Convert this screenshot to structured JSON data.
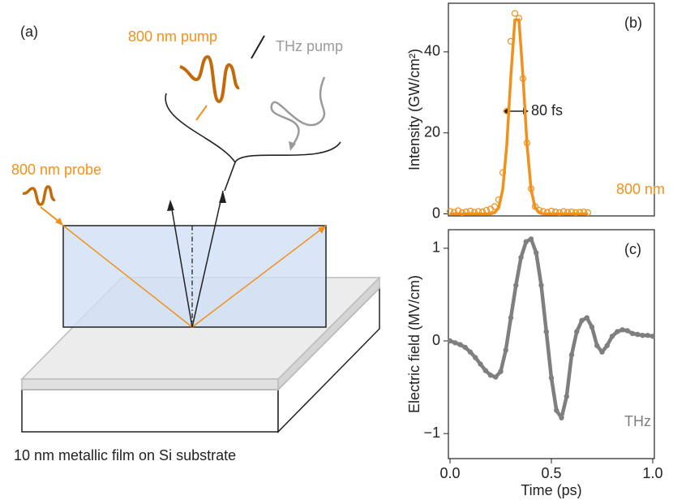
{
  "diagram": {
    "panel_label": "(a)",
    "pump_label": "800 nm pump",
    "thz_label": "THz pump",
    "probe_label": "800 nm probe",
    "caption": "10 nm metallic film on Si substrate"
  },
  "chart_data": [
    {
      "type": "line",
      "panel_label": "(b)",
      "ylabel": "Intensity (GW/cm²)",
      "annotations": [
        "800 nm",
        "80 fs"
      ],
      "x": [
        0.0,
        0.02,
        0.04,
        0.06,
        0.08,
        0.1,
        0.12,
        0.14,
        0.16,
        0.18,
        0.2,
        0.22,
        0.24,
        0.26,
        0.28,
        0.3,
        0.32,
        0.34,
        0.36,
        0.38,
        0.4,
        0.42,
        0.44,
        0.46,
        0.48,
        0.5,
        0.52,
        0.54,
        0.56,
        0.58,
        0.6,
        0.62,
        0.64,
        0.66,
        0.68
      ],
      "series": [
        {
          "color": "#f39019",
          "marker": "open-circle",
          "values": [
            0.6,
            0.4,
            0.8,
            0.3,
            0.5,
            0.7,
            0.4,
            0.6,
            0.5,
            0.9,
            1.2,
            1.8,
            3.5,
            10.2,
            25.4,
            42.6,
            49.5,
            48.3,
            33.4,
            17.5,
            6.2,
            1.8,
            0.9,
            0.6,
            0.4,
            0.7,
            0.5,
            0.3,
            0.6,
            0.4,
            0.5,
            0.3,
            0.4,
            0.5,
            0.3
          ]
        },
        {
          "color": "#f39019",
          "marker": "none",
          "values": [
            0,
            0,
            0,
            0,
            0,
            0,
            0,
            0,
            0,
            0,
            0,
            0.3,
            1.5,
            6.0,
            17.0,
            33.9,
            47.9,
            47.9,
            33.9,
            17.0,
            6.0,
            1.5,
            0.3,
            0,
            0,
            0,
            0,
            0,
            0,
            0,
            0,
            0,
            0,
            0,
            0
          ]
        }
      ],
      "xlim": [
        0,
        1
      ],
      "ylim": [
        -0.5,
        52
      ],
      "yticks": [
        0,
        20,
        40
      ]
    },
    {
      "type": "line",
      "panel_label": "(c)",
      "ylabel": "Electric field (MV/cm)",
      "xlabel": "Time (ps)",
      "annotations": [
        "THz"
      ],
      "x": [
        0,
        0.025,
        0.05,
        0.075,
        0.1,
        0.125,
        0.15,
        0.175,
        0.2,
        0.225,
        0.25,
        0.275,
        0.3,
        0.325,
        0.35,
        0.375,
        0.4,
        0.425,
        0.45,
        0.475,
        0.5,
        0.525,
        0.55,
        0.575,
        0.6,
        0.625,
        0.65,
        0.675,
        0.7,
        0.725,
        0.75,
        0.775,
        0.8,
        0.825,
        0.85,
        0.875,
        0.9,
        0.925,
        0.95,
        0.975,
        1.0
      ],
      "series": [
        {
          "color": "#7f7f7f",
          "marker": "dot",
          "values": [
            0.0,
            -0.02,
            -0.04,
            -0.07,
            -0.12,
            -0.18,
            -0.25,
            -0.32,
            -0.37,
            -0.39,
            -0.33,
            -0.1,
            0.25,
            0.6,
            0.9,
            1.07,
            1.1,
            0.95,
            0.6,
            0.1,
            -0.4,
            -0.75,
            -0.83,
            -0.6,
            -0.15,
            0.1,
            0.22,
            0.25,
            0.15,
            -0.05,
            -0.12,
            -0.05,
            0.05,
            0.1,
            0.12,
            0.11,
            0.08,
            0.07,
            0.06,
            0.06,
            0.05
          ]
        }
      ],
      "xlim": [
        0,
        1
      ],
      "ylim": [
        -1.27,
        1.2
      ],
      "xticks": [
        {
          "value": 0,
          "label": "0.0"
        },
        0.5,
        {
          "value": 1,
          "label": "1.0"
        }
      ],
      "yticks": [
        {
          "value": -1,
          "label": "−1"
        },
        0,
        1
      ]
    }
  ]
}
